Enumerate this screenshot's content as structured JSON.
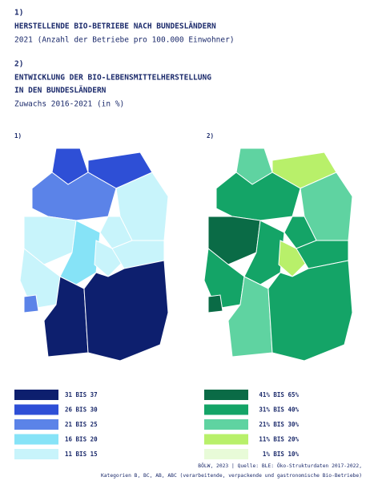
{
  "header": {
    "part1_number": "1)",
    "part1_title": "HERSTELLENDE BIO-BETRIEBE NACH BUNDESLÄNDERN",
    "part1_subtitle": "2021 (Anzahl der Betriebe pro 100.000 Einwohner)",
    "part2_number": "2)",
    "part2_title_line1": "ENTWICKLUNG DER BIO-LEBENSMITTELHERSTELLUNG",
    "part2_title_line2": "IN DEN BUNDESLÄNDERN",
    "part2_subtitle": "Zuwachs 2016-2021 (in %)"
  },
  "maps": [
    {
      "label": "1)",
      "legend": [
        {
          "label": "31 BIS 37",
          "color": "#0d1f6e"
        },
        {
          "label": "26 BIS 30",
          "color": "#2e4fd6"
        },
        {
          "label": "21 BIS 25",
          "color": "#5b83e8"
        },
        {
          "label": "16 BIS 20",
          "color": "#86e3f7"
        },
        {
          "label": "11 BIS 15",
          "color": "#c8f4fb"
        }
      ]
    },
    {
      "label": "2)",
      "legend": [
        {
          "label": "41% BIS 65%",
          "color": "#0a6b46"
        },
        {
          "label": "31% BIS 40%",
          "color": "#14a467"
        },
        {
          "label": "21% BIS 30%",
          "color": "#5fd3a1"
        },
        {
          "label": "11% BIS 20%",
          "color": "#b8f06a"
        },
        {
          "label": "1% BIS 10%",
          "color": "#e8fbd8"
        }
      ]
    }
  ],
  "footer": [
    "BÖLW, 2023 | Quelle: BLE: Öko-Strukturdaten 2017-2022,",
    "Kategorien B, BC, AB, ABC (verarbeitende, verpackende und gastronomische Bio-Betriebe)"
  ]
}
